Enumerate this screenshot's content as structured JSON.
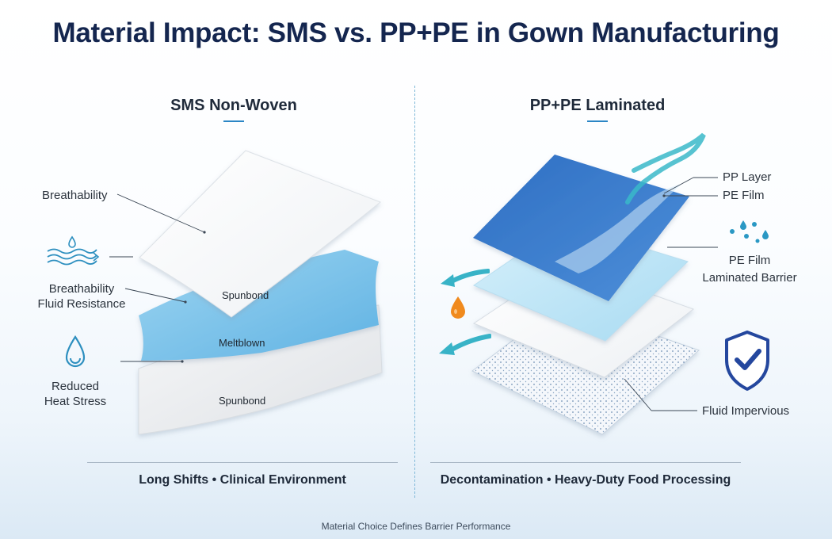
{
  "title": "Material Impact: SMS vs. PP+PE in Gown Manufacturing",
  "left": {
    "heading": "SMS Non-Woven",
    "labels": {
      "breathability": "Breathability",
      "breathability_fluid": "Breathability\nFluid Resistance",
      "reduced_heat": "Reduced\nHeat Stress"
    },
    "layers": [
      "Spunbond",
      "Meltblown",
      "Spunbond"
    ],
    "bottom": "Long Shifts • Clinical Environment"
  },
  "right": {
    "heading": "PP+PE Laminated",
    "labels": {
      "pp_layer": "PP Layer",
      "pe_film": "PE Film",
      "pe_film_laminated": "PE Film\nLaminated Barrier",
      "fluid_impervious": "Fluid Impervious"
    },
    "bottom": "Decontamination • Heavy-Duty Food Processing"
  },
  "footer": "Material Choice Defines Barrier Performance",
  "colors": {
    "title": "#14264f",
    "accent": "#2b86c5",
    "pp_layer": "#3f7fce",
    "pe_film": "#bfe6f6",
    "meltblown": "#7cc4ea",
    "shield": "#24479e",
    "drop_orange": "#f08a1e"
  },
  "icons": [
    "airflow-waves-icon",
    "water-drop-icon",
    "water-droplets-icon",
    "orange-drop-icon",
    "shield-check-icon",
    "teal-arrow-icon"
  ]
}
